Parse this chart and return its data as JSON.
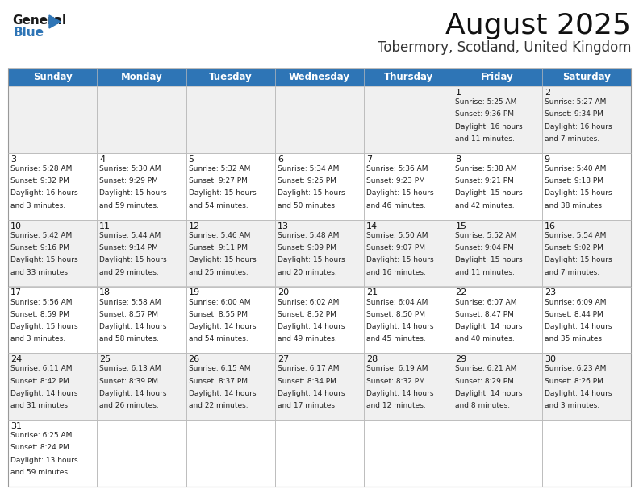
{
  "title": "August 2025",
  "subtitle": "Tobermory, Scotland, United Kingdom",
  "header_bg": "#2E75B6",
  "header_text_color": "#FFFFFF",
  "days_of_week": [
    "Sunday",
    "Monday",
    "Tuesday",
    "Wednesday",
    "Thursday",
    "Friday",
    "Saturday"
  ],
  "cell_bg_odd": "#F0F0F0",
  "cell_bg_even": "#FFFFFF",
  "text_color": "#222222",
  "day_num_color": "#111111",
  "calendar": [
    [
      null,
      null,
      null,
      null,
      null,
      {
        "day": "1",
        "sunrise": "5:25 AM",
        "sunset": "9:36 PM",
        "daylight_h": "16 hours",
        "daylight_m": "and 11 minutes."
      },
      {
        "day": "2",
        "sunrise": "5:27 AM",
        "sunset": "9:34 PM",
        "daylight_h": "16 hours",
        "daylight_m": "and 7 minutes."
      }
    ],
    [
      {
        "day": "3",
        "sunrise": "5:28 AM",
        "sunset": "9:32 PM",
        "daylight_h": "16 hours",
        "daylight_m": "and 3 minutes."
      },
      {
        "day": "4",
        "sunrise": "5:30 AM",
        "sunset": "9:29 PM",
        "daylight_h": "15 hours",
        "daylight_m": "and 59 minutes."
      },
      {
        "day": "5",
        "sunrise": "5:32 AM",
        "sunset": "9:27 PM",
        "daylight_h": "15 hours",
        "daylight_m": "and 54 minutes."
      },
      {
        "day": "6",
        "sunrise": "5:34 AM",
        "sunset": "9:25 PM",
        "daylight_h": "15 hours",
        "daylight_m": "and 50 minutes."
      },
      {
        "day": "7",
        "sunrise": "5:36 AM",
        "sunset": "9:23 PM",
        "daylight_h": "15 hours",
        "daylight_m": "and 46 minutes."
      },
      {
        "day": "8",
        "sunrise": "5:38 AM",
        "sunset": "9:21 PM",
        "daylight_h": "15 hours",
        "daylight_m": "and 42 minutes."
      },
      {
        "day": "9",
        "sunrise": "5:40 AM",
        "sunset": "9:18 PM",
        "daylight_h": "15 hours",
        "daylight_m": "and 38 minutes."
      }
    ],
    [
      {
        "day": "10",
        "sunrise": "5:42 AM",
        "sunset": "9:16 PM",
        "daylight_h": "15 hours",
        "daylight_m": "and 33 minutes."
      },
      {
        "day": "11",
        "sunrise": "5:44 AM",
        "sunset": "9:14 PM",
        "daylight_h": "15 hours",
        "daylight_m": "and 29 minutes."
      },
      {
        "day": "12",
        "sunrise": "5:46 AM",
        "sunset": "9:11 PM",
        "daylight_h": "15 hours",
        "daylight_m": "and 25 minutes."
      },
      {
        "day": "13",
        "sunrise": "5:48 AM",
        "sunset": "9:09 PM",
        "daylight_h": "15 hours",
        "daylight_m": "and 20 minutes."
      },
      {
        "day": "14",
        "sunrise": "5:50 AM",
        "sunset": "9:07 PM",
        "daylight_h": "15 hours",
        "daylight_m": "and 16 minutes."
      },
      {
        "day": "15",
        "sunrise": "5:52 AM",
        "sunset": "9:04 PM",
        "daylight_h": "15 hours",
        "daylight_m": "and 11 minutes."
      },
      {
        "day": "16",
        "sunrise": "5:54 AM",
        "sunset": "9:02 PM",
        "daylight_h": "15 hours",
        "daylight_m": "and 7 minutes."
      }
    ],
    [
      {
        "day": "17",
        "sunrise": "5:56 AM",
        "sunset": "8:59 PM",
        "daylight_h": "15 hours",
        "daylight_m": "and 3 minutes."
      },
      {
        "day": "18",
        "sunrise": "5:58 AM",
        "sunset": "8:57 PM",
        "daylight_h": "14 hours",
        "daylight_m": "and 58 minutes."
      },
      {
        "day": "19",
        "sunrise": "6:00 AM",
        "sunset": "8:55 PM",
        "daylight_h": "14 hours",
        "daylight_m": "and 54 minutes."
      },
      {
        "day": "20",
        "sunrise": "6:02 AM",
        "sunset": "8:52 PM",
        "daylight_h": "14 hours",
        "daylight_m": "and 49 minutes."
      },
      {
        "day": "21",
        "sunrise": "6:04 AM",
        "sunset": "8:50 PM",
        "daylight_h": "14 hours",
        "daylight_m": "and 45 minutes."
      },
      {
        "day": "22",
        "sunrise": "6:07 AM",
        "sunset": "8:47 PM",
        "daylight_h": "14 hours",
        "daylight_m": "and 40 minutes."
      },
      {
        "day": "23",
        "sunrise": "6:09 AM",
        "sunset": "8:44 PM",
        "daylight_h": "14 hours",
        "daylight_m": "and 35 minutes."
      }
    ],
    [
      {
        "day": "24",
        "sunrise": "6:11 AM",
        "sunset": "8:42 PM",
        "daylight_h": "14 hours",
        "daylight_m": "and 31 minutes."
      },
      {
        "day": "25",
        "sunrise": "6:13 AM",
        "sunset": "8:39 PM",
        "daylight_h": "14 hours",
        "daylight_m": "and 26 minutes."
      },
      {
        "day": "26",
        "sunrise": "6:15 AM",
        "sunset": "8:37 PM",
        "daylight_h": "14 hours",
        "daylight_m": "and 22 minutes."
      },
      {
        "day": "27",
        "sunrise": "6:17 AM",
        "sunset": "8:34 PM",
        "daylight_h": "14 hours",
        "daylight_m": "and 17 minutes."
      },
      {
        "day": "28",
        "sunrise": "6:19 AM",
        "sunset": "8:32 PM",
        "daylight_h": "14 hours",
        "daylight_m": "and 12 minutes."
      },
      {
        "day": "29",
        "sunrise": "6:21 AM",
        "sunset": "8:29 PM",
        "daylight_h": "14 hours",
        "daylight_m": "and 8 minutes."
      },
      {
        "day": "30",
        "sunrise": "6:23 AM",
        "sunset": "8:26 PM",
        "daylight_h": "14 hours",
        "daylight_m": "and 3 minutes."
      }
    ],
    [
      {
        "day": "31",
        "sunrise": "6:25 AM",
        "sunset": "8:24 PM",
        "daylight_h": "13 hours",
        "daylight_m": "and 59 minutes."
      },
      null,
      null,
      null,
      null,
      null,
      null
    ]
  ],
  "title_fontsize": 26,
  "subtitle_fontsize": 12,
  "header_fontsize": 8.5,
  "cell_day_fontsize": 8,
  "cell_text_fontsize": 6.5
}
